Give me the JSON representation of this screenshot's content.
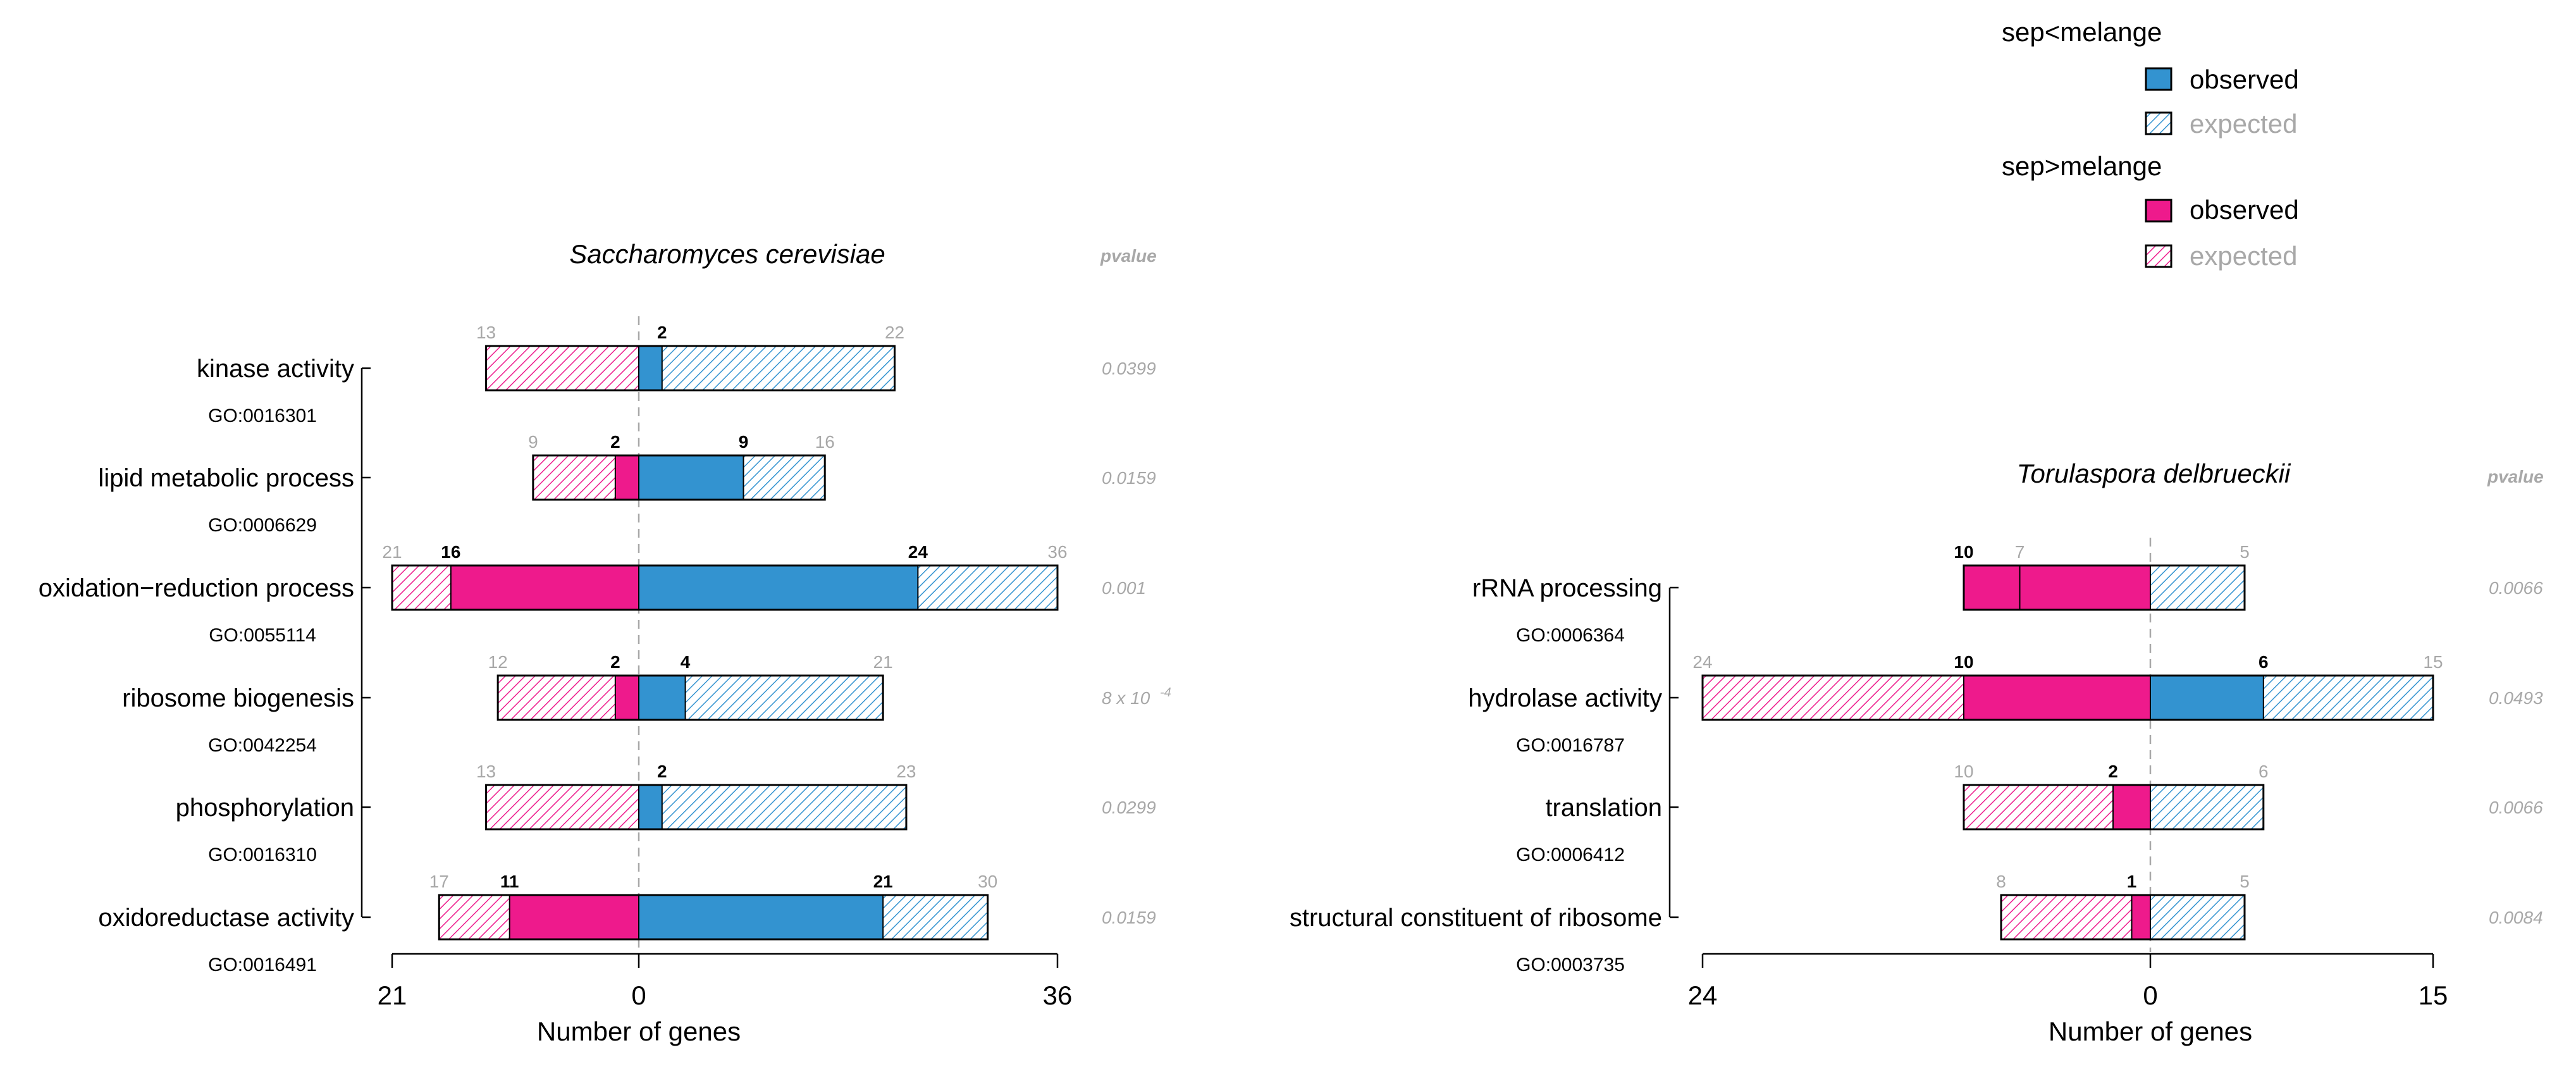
{
  "legend": {
    "groups": [
      {
        "title": "sep<melange",
        "observed_label": "observed",
        "expected_label": "expected",
        "color": "#3393d0"
      },
      {
        "title": "sep>melange",
        "observed_label": "observed",
        "expected_label": "expected",
        "color": "#ee1a8c"
      }
    ]
  },
  "chart_data": [
    {
      "type": "bar",
      "orientation": "horizontal-diverging",
      "title": "Saccharomyces cerevisiae",
      "pvalue_header": "pvalue",
      "xlabel": "Number of genes",
      "xlim_left": 21,
      "xlim_right": 36,
      "tick_labels": [
        "21",
        "0",
        "36"
      ],
      "categories": [
        {
          "label": "kinase activity",
          "go": "GO:0016301",
          "left_observed": 0,
          "left_expected": 13,
          "right_observed": 2,
          "right_expected": 22,
          "left_observed_label": "",
          "left_expected_label": "13",
          "right_observed_label": "2",
          "right_expected_label": "22",
          "pvalue": "0.0399"
        },
        {
          "label": "lipid metabolic process",
          "go": "GO:0006629",
          "left_observed": 2,
          "left_expected": 9,
          "right_observed": 9,
          "right_expected": 16,
          "left_observed_label": "2",
          "left_expected_label": "9",
          "right_observed_label": "9",
          "right_expected_label": "16",
          "pvalue": "0.0159"
        },
        {
          "label": "oxidation−reduction process",
          "go": "GO:0055114",
          "left_observed": 16,
          "left_expected": 21,
          "right_observed": 24,
          "right_expected": 36,
          "left_observed_label": "16",
          "left_expected_label": "21",
          "right_observed_label": "24",
          "right_expected_label": "36",
          "pvalue": "0.001"
        },
        {
          "label": "ribosome biogenesis",
          "go": "GO:0042254",
          "left_observed": 2,
          "left_expected": 12,
          "right_observed": 4,
          "right_expected": 21,
          "left_observed_label": "2",
          "left_expected_label": "12",
          "right_observed_label": "4",
          "right_expected_label": "21",
          "pvalue": "8 x 10",
          "pvalue_exp": "-4"
        },
        {
          "label": "phosphorylation",
          "go": "GO:0016310",
          "left_observed": 0,
          "left_expected": 13,
          "right_observed": 2,
          "right_expected": 23,
          "left_observed_label": "",
          "left_expected_label": "13",
          "right_observed_label": "2",
          "right_expected_label": "23",
          "pvalue": "0.0299"
        },
        {
          "label": "oxidoreductase activity",
          "go": "GO:0016491",
          "left_observed": 11,
          "left_expected": 17,
          "right_observed": 21,
          "right_expected": 30,
          "left_observed_label": "11",
          "left_expected_label": "17",
          "right_observed_label": "21",
          "right_expected_label": "30",
          "pvalue": "0.0159"
        }
      ]
    },
    {
      "type": "bar",
      "orientation": "horizontal-diverging",
      "title": "Torulaspora delbrueckii",
      "pvalue_header": "pvalue",
      "xlabel": "Number of genes",
      "xlim_left": 24,
      "xlim_right": 15,
      "tick_labels": [
        "24",
        "0",
        "15"
      ],
      "categories": [
        {
          "label": "rRNA processing",
          "go": "GO:0006364",
          "left_observed": 10,
          "left_expected": 7,
          "right_observed": 0,
          "right_expected": 5,
          "left_observed_label": "10",
          "left_expected_label": "7",
          "right_observed_label": "",
          "right_expected_label": "5",
          "pvalue": "0.0066"
        },
        {
          "label": "hydrolase activity",
          "go": "GO:0016787",
          "left_observed": 10,
          "left_expected": 24,
          "right_observed": 6,
          "right_expected": 15,
          "left_observed_label": "10",
          "left_expected_label": "24",
          "right_observed_label": "6",
          "right_expected_label": "15",
          "pvalue": "0.0493"
        },
        {
          "label": "translation",
          "go": "GO:0006412",
          "left_observed": 2,
          "left_expected": 10,
          "right_observed": 0,
          "right_expected": 6,
          "left_observed_label": "2",
          "left_expected_label": "10",
          "right_observed_label": "",
          "right_expected_label": "6",
          "pvalue": "0.0066"
        },
        {
          "label": "structural constituent of ribosome",
          "go": "GO:0003735",
          "left_observed": 1,
          "left_expected": 8,
          "right_observed": 0,
          "right_expected": 5,
          "left_observed_label": "1",
          "left_expected_label": "8",
          "right_observed_label": "",
          "right_expected_label": "5",
          "pvalue": "0.0084"
        }
      ]
    }
  ]
}
